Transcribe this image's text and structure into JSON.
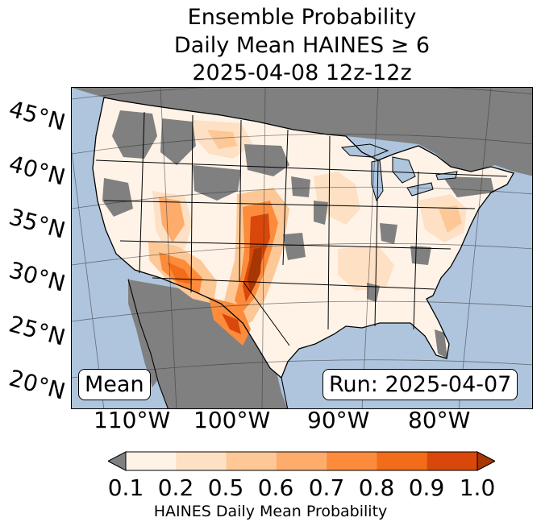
{
  "title": {
    "line1": "Ensemble Probability",
    "line2": "Daily Mean HAINES ≥ 6",
    "line3": "2025-04-08 12z-12z"
  },
  "lat_labels": [
    "45°N",
    "40°N",
    "35°N",
    "30°N",
    "25°N",
    "20°N"
  ],
  "lon_labels": [
    "110°W",
    "100°W",
    "90°W",
    "80°W"
  ],
  "mean_label": "Mean",
  "run_label": "Run: 2025-04-07",
  "colorbar": {
    "ticks": [
      "0.1",
      "0.2",
      "0.5",
      "0.6",
      "0.7",
      "0.8",
      "0.9",
      "1.0"
    ],
    "label": "HAINES Daily Mean Probability",
    "colors": [
      "#fff3e8",
      "#fee0c4",
      "#fdc896",
      "#fdac6c",
      "#fc8c3c",
      "#f26c1a",
      "#d9480a",
      "#a63603"
    ],
    "under_color": "#808080"
  },
  "map_colors": {
    "ocean": "#aec5dd",
    "land_missing": "#808080",
    "lakes": "#aec5dd"
  }
}
